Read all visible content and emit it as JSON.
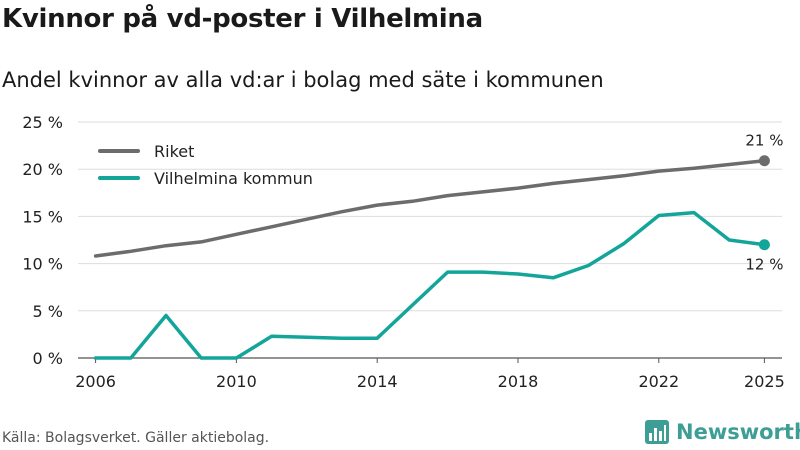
{
  "header": {
    "title": "Kvinnor på vd-poster i Vilhelmina",
    "subtitle": "Andel kvinnor av alla vd:ar i bolag med säte i kommunen"
  },
  "footer": {
    "source": "Källa: Bolagsverket. Gäller aktiebolag.",
    "logo_text": "Newsworthy"
  },
  "colors": {
    "riket": "#6d6b6e",
    "vilhelmina": "#13a59a",
    "grid": "#dddddd",
    "logo": "#3d9e95"
  },
  "chart_data": {
    "type": "line",
    "title": "Kvinnor på vd-poster i Vilhelmina",
    "subtitle": "Andel kvinnor av alla vd:ar i bolag med säte i kommunen",
    "xlabel": "",
    "ylabel": "",
    "xlim": [
      2005.5,
      2025.5
    ],
    "ylim": [
      0,
      25
    ],
    "x_ticks": [
      2006,
      2010,
      2014,
      2018,
      2022,
      2025
    ],
    "x_tick_labels": [
      "2006",
      "2010",
      "2014",
      "2018",
      "2022",
      "2025"
    ],
    "y_ticks": [
      0,
      5,
      10,
      15,
      20,
      25
    ],
    "y_tick_labels": [
      "0 %",
      "5 %",
      "10 %",
      "15 %",
      "20 %",
      "25 %"
    ],
    "grid": true,
    "legend_position": "top-left",
    "x": [
      2006,
      2007,
      2008,
      2009,
      2010,
      2011,
      2012,
      2013,
      2014,
      2015,
      2016,
      2017,
      2018,
      2019,
      2020,
      2021,
      2022,
      2023,
      2024,
      2025
    ],
    "series": [
      {
        "name": "Riket",
        "color_key": "riket",
        "values": [
          10.8,
          11.3,
          11.9,
          12.3,
          13.1,
          13.9,
          14.7,
          15.5,
          16.2,
          16.6,
          17.2,
          17.6,
          18.0,
          18.5,
          18.9,
          19.3,
          19.8,
          20.1,
          20.5,
          20.9
        ],
        "end_label": "21 %",
        "end_label_position": "above"
      },
      {
        "name": "Vilhelmina kommun",
        "color_key": "vilhelmina",
        "values": [
          0.0,
          0.0,
          4.5,
          0.0,
          0.0,
          2.3,
          2.2,
          2.1,
          2.1,
          5.6,
          9.1,
          9.1,
          8.9,
          8.5,
          9.8,
          12.1,
          15.1,
          15.4,
          12.5,
          12.0
        ],
        "end_label": "12 %",
        "end_label_position": "below"
      }
    ]
  }
}
